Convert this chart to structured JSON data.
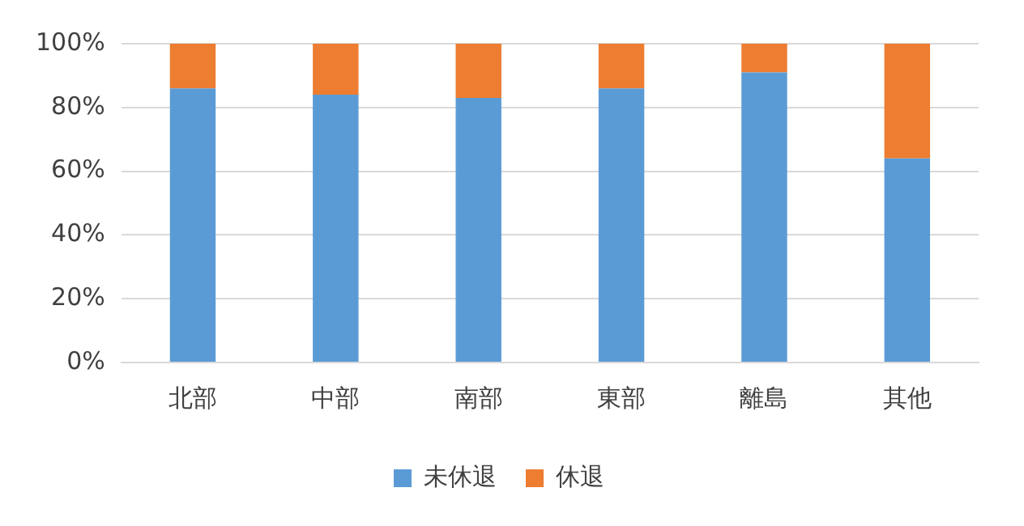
{
  "chart_data": {
    "type": "bar",
    "stacked": true,
    "categories": [
      "北部",
      "中部",
      "南部",
      "東部",
      "離島",
      "其他"
    ],
    "series": [
      {
        "name": "未休退",
        "color": "#5b9bd5",
        "values": [
          86,
          84,
          83,
          86,
          91,
          64
        ]
      },
      {
        "name": "休退",
        "color": "#ed7d31",
        "values": [
          14,
          16,
          17,
          14,
          9,
          36
        ]
      }
    ],
    "ylim": [
      0,
      100
    ],
    "yticks": [
      {
        "value": 0,
        "label": "0%"
      },
      {
        "value": 20,
        "label": "20%"
      },
      {
        "value": 40,
        "label": "40%"
      },
      {
        "value": 60,
        "label": "60%"
      },
      {
        "value": 80,
        "label": "80%"
      },
      {
        "value": 100,
        "label": "100%"
      }
    ],
    "grid": "y",
    "legend": "bottom"
  }
}
